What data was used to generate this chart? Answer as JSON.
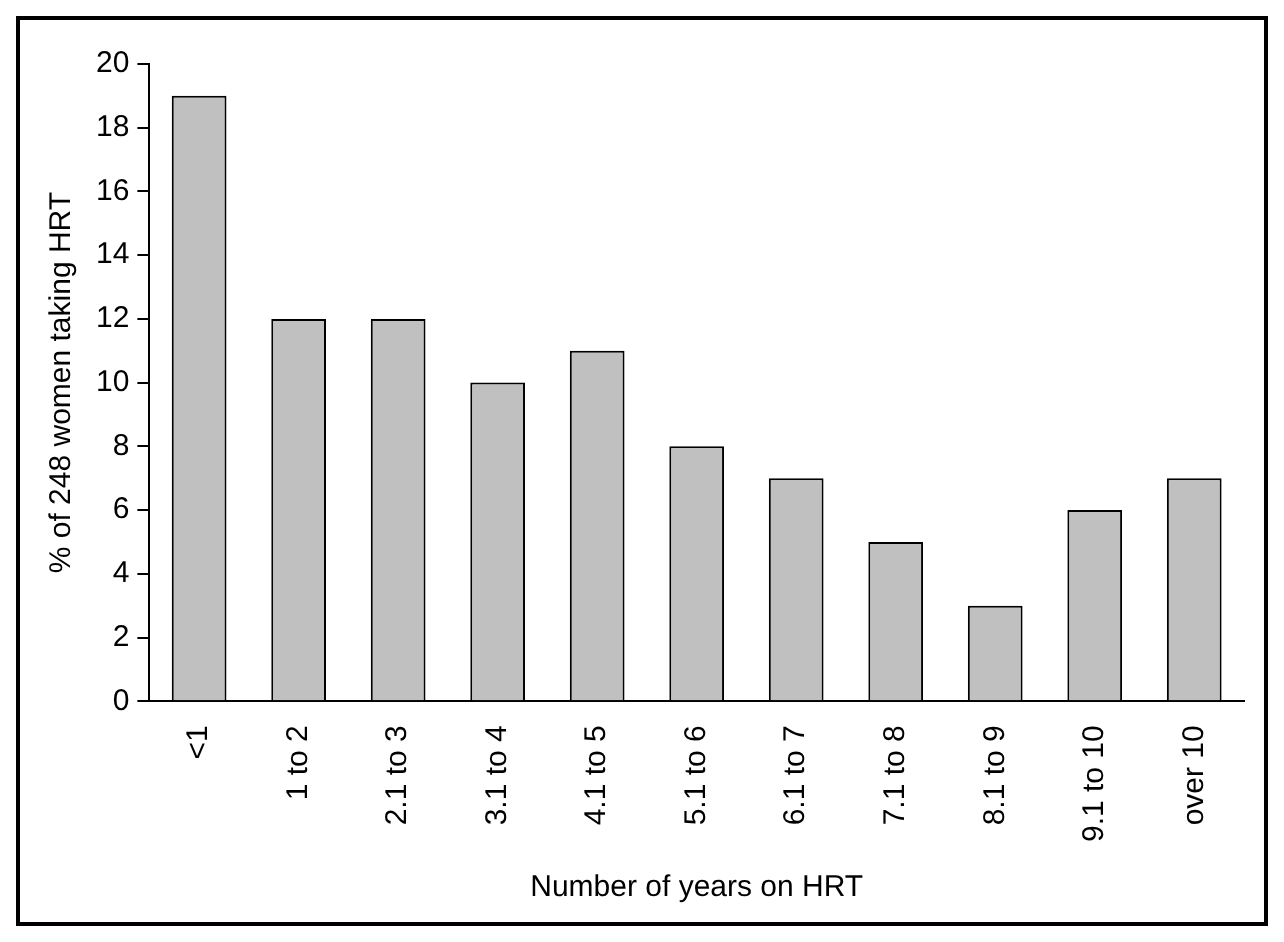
{
  "chart_data": {
    "type": "bar",
    "categories": [
      "<1",
      "1 to 2",
      "2.1 to 3",
      "3.1 to 4",
      "4.1 to 5",
      "5.1 to 6",
      "6.1 to 7",
      "7.1 to 8",
      "8.1 to 9",
      "9.1 to 10",
      "over 10"
    ],
    "values": [
      19,
      12,
      12,
      10,
      11,
      8,
      7,
      5,
      3,
      6,
      7
    ],
    "color": "#c0c0c0",
    "xlabel": "Number of years on HRT",
    "ylabel": "% of 248 women taking HRT",
    "ylim": [
      0,
      20
    ],
    "yticks": [
      0,
      2,
      4,
      6,
      8,
      10,
      12,
      14,
      16,
      18,
      20
    ],
    "grid": false,
    "legend": false
  }
}
